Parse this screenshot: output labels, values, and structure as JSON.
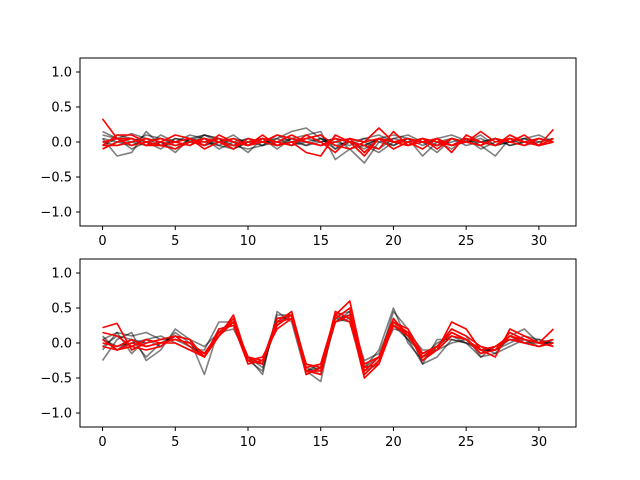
{
  "chart_data": [
    {
      "type": "line",
      "panel": "top",
      "xlim": [
        -1.55,
        32.55
      ],
      "ylim": [
        -1.2,
        1.2
      ],
      "xticks": [
        0,
        5,
        10,
        15,
        20,
        25,
        30
      ],
      "yticks": [
        -1.0,
        -0.5,
        0.0,
        0.5,
        1.0
      ],
      "xtick_labels": [
        "0",
        "5",
        "10",
        "15",
        "20",
        "25",
        "30"
      ],
      "ytick_labels": [
        "−1.0",
        "−0.5",
        "0.0",
        "0.5",
        "1.0"
      ],
      "x": [
        0,
        1,
        2,
        3,
        4,
        5,
        6,
        7,
        8,
        9,
        10,
        11,
        12,
        13,
        14,
        15,
        16,
        17,
        18,
        19,
        20,
        21,
        22,
        23,
        24,
        25,
        26,
        27,
        28,
        29,
        30,
        31
      ],
      "series": [
        {
          "color": "#000000",
          "opacity": 0.5,
          "values": [
            0.15,
            0.05,
            0.12,
            0.05,
            -0.05,
            0.05,
            0.02,
            0.1,
            0.05,
            -0.05,
            -0.1,
            -0.05,
            0.05,
            0.15,
            0.2,
            0.05,
            -0.05,
            0.0,
            -0.1,
            0.05,
            0.1,
            0.05,
            -0.05,
            0.05,
            0.1,
            0.02,
            0.0,
            0.05,
            -0.05,
            0.0,
            0.05,
            0.0
          ]
        },
        {
          "color": "#000000",
          "opacity": 0.5,
          "values": [
            0.05,
            -0.2,
            -0.15,
            0.15,
            -0.05,
            0.0,
            0.1,
            0.05,
            -0.05,
            -0.1,
            0.0,
            0.05,
            -0.1,
            0.05,
            0.1,
            0.15,
            -0.25,
            -0.1,
            -0.05,
            -0.15,
            0.0,
            0.05,
            -0.2,
            0.0,
            -0.1,
            0.05,
            -0.05,
            -0.2,
            0.05,
            0.0,
            -0.05,
            0.0
          ]
        },
        {
          "color": "#000000",
          "opacity": 0.5,
          "values": [
            -0.05,
            0.1,
            0.05,
            0.0,
            -0.1,
            0.05,
            0.0,
            -0.05,
            0.05,
            0.0,
            -0.15,
            0.05,
            0.0,
            -0.05,
            0.05,
            0.0,
            0.05,
            -0.1,
            -0.3,
            0.0,
            0.05,
            0.1,
            0.0,
            -0.05,
            0.05,
            0.0,
            -0.05,
            0.05,
            0.0,
            0.05,
            0.1,
            0.0
          ]
        },
        {
          "color": "#000000",
          "opacity": 0.5,
          "values": [
            -0.1,
            0.0,
            0.05,
            -0.05,
            0.0,
            -0.15,
            0.05,
            0.1,
            0.0,
            -0.05,
            0.05,
            0.0,
            -0.05,
            0.0,
            0.05,
            0.1,
            -0.1,
            0.05,
            0.0,
            -0.1,
            0.05,
            0.0,
            0.05,
            -0.05,
            0.0,
            0.05,
            -0.1,
            0.0,
            0.05,
            -0.05,
            0.0,
            0.05
          ]
        },
        {
          "color": "#000000",
          "opacity": 0.5,
          "values": [
            0.0,
            -0.05,
            0.0,
            0.1,
            0.05,
            -0.05,
            0.0,
            0.05,
            -0.1,
            0.0,
            0.05,
            -0.05,
            0.1,
            0.0,
            -0.05,
            0.05,
            0.0,
            -0.05,
            0.05,
            0.1,
            0.0,
            -0.05,
            0.05,
            0.0,
            -0.05,
            0.05,
            0.0,
            -0.05,
            0.1,
            0.0,
            -0.05,
            0.0
          ]
        },
        {
          "color": "#000000",
          "opacity": 0.5,
          "values": [
            0.1,
            0.05,
            -0.1,
            0.0,
            0.05,
            0.0,
            -0.05,
            0.1,
            0.05,
            -0.1,
            0.0,
            0.05,
            -0.05,
            0.05,
            0.0,
            -0.05,
            0.05,
            0.0,
            -0.05,
            0.05,
            -0.05,
            0.05,
            0.0,
            -0.15,
            0.05,
            0.0,
            0.05,
            -0.05,
            0.0,
            0.05,
            0.0,
            0.05
          ]
        },
        {
          "color": "#000000",
          "opacity": 0.5,
          "values": [
            -0.05,
            0.05,
            0.0,
            -0.05,
            0.1,
            0.0,
            0.05,
            -0.05,
            0.0,
            0.1,
            -0.05,
            0.0,
            0.05,
            -0.05,
            0.0,
            0.05,
            -0.1,
            0.0,
            0.05,
            0.0,
            -0.05,
            0.05,
            0.0,
            0.05,
            -0.05,
            0.0,
            0.1,
            -0.05,
            0.0,
            0.05,
            -0.05,
            0.0
          ]
        },
        {
          "color": "#000000",
          "opacity": 0.5,
          "values": [
            0.05,
            0.0,
            -0.05,
            0.05,
            0.0,
            -0.1,
            0.05,
            0.0,
            -0.05,
            0.05,
            0.0,
            -0.05,
            0.0,
            0.05,
            -0.05,
            0.0,
            0.05,
            0.0,
            -0.05,
            0.05,
            0.0,
            -0.05,
            0.05,
            0.0,
            0.05,
            -0.05,
            0.0,
            0.05,
            -0.05,
            0.0,
            0.05,
            0.0
          ]
        },
        {
          "color": "#ff0000",
          "opacity": 1,
          "values": [
            0.33,
            0.05,
            0.05,
            -0.05,
            -0.05,
            0.0,
            0.05,
            -0.05,
            0.1,
            0.0,
            -0.05,
            0.1,
            -0.05,
            0.0,
            0.05,
            0.1,
            -0.05,
            -0.1,
            0.0,
            0.2,
            0.0,
            -0.05,
            0.05,
            -0.1,
            0.05,
            0.0,
            0.15,
            0.0,
            0.05,
            0.0,
            -0.05,
            0.0
          ]
        },
        {
          "color": "#ff0000",
          "opacity": 1,
          "values": [
            -0.05,
            0.1,
            0.1,
            0.0,
            -0.05,
            -0.1,
            0.0,
            0.05,
            0.0,
            -0.1,
            0.05,
            0.0,
            -0.05,
            0.0,
            -0.15,
            -0.2,
            0.1,
            0.0,
            -0.2,
            0.05,
            0.0,
            0.0,
            -0.1,
            0.05,
            -0.05,
            0.0,
            -0.05,
            0.05,
            0.0,
            -0.05,
            0.05,
            0.0
          ]
        },
        {
          "color": "#ff0000",
          "opacity": 1,
          "values": [
            -0.1,
            0.0,
            0.05,
            -0.05,
            0.0,
            0.1,
            0.05,
            -0.1,
            0.0,
            0.05,
            -0.05,
            0.0,
            0.1,
            0.05,
            0.0,
            -0.05,
            0.05,
            0.0,
            -0.05,
            -0.1,
            0.15,
            -0.05,
            0.0,
            0.05,
            -0.15,
            0.1,
            0.0,
            -0.05,
            0.1,
            0.0,
            -0.05,
            0.05
          ]
        },
        {
          "color": "#ff0000",
          "opacity": 1,
          "values": [
            0.0,
            0.05,
            -0.05,
            0.0,
            0.05,
            0.0,
            -0.05,
            0.05,
            0.0,
            -0.05,
            0.0,
            0.05,
            0.0,
            0.1,
            0.0,
            -0.05,
            0.0,
            0.05,
            -0.15,
            0.05,
            0.0,
            0.05,
            0.0,
            -0.05,
            0.05,
            0.0,
            -0.05,
            0.05,
            0.0,
            0.1,
            -0.05,
            0.18
          ]
        },
        {
          "color": "#ff0000",
          "opacity": 1,
          "values": [
            -0.05,
            -0.05,
            0.0,
            0.05,
            0.0,
            -0.05,
            0.0,
            0.0,
            0.05,
            0.0,
            -0.05,
            0.05,
            0.0,
            -0.05,
            0.1,
            0.0,
            -0.15,
            0.05,
            0.0,
            0.05,
            -0.1,
            0.0,
            0.05,
            0.0,
            -0.05,
            0.05,
            0.0,
            -0.05,
            0.05,
            0.0,
            0.05,
            0.0
          ]
        }
      ]
    },
    {
      "type": "line",
      "panel": "bottom",
      "xlim": [
        -1.55,
        32.55
      ],
      "ylim": [
        -1.2,
        1.2
      ],
      "xticks": [
        0,
        5,
        10,
        15,
        20,
        25,
        30
      ],
      "yticks": [
        -1.0,
        -0.5,
        0.0,
        0.5,
        1.0
      ],
      "xtick_labels": [
        "0",
        "5",
        "10",
        "15",
        "20",
        "25",
        "30"
      ],
      "ytick_labels": [
        "−1.0",
        "−0.5",
        "0.0",
        "0.5",
        "1.0"
      ],
      "x": [
        0,
        1,
        2,
        3,
        4,
        5,
        6,
        7,
        8,
        9,
        10,
        11,
        12,
        13,
        14,
        15,
        16,
        17,
        18,
        19,
        20,
        21,
        22,
        23,
        24,
        25,
        26,
        27,
        28,
        29,
        30,
        31
      ],
      "series": [
        {
          "color": "#000000",
          "opacity": 0.5,
          "values": [
            -0.25,
            0.05,
            0.15,
            -0.25,
            -0.1,
            0.2,
            0.05,
            -0.45,
            0.2,
            0.25,
            -0.25,
            -0.4,
            0.4,
            0.4,
            -0.4,
            -0.55,
            0.4,
            0.45,
            -0.35,
            -0.1,
            0.5,
            0.0,
            -0.25,
            -0.05,
            0.2,
            0.1,
            -0.2,
            -0.15,
            0.1,
            0.2,
            0.0,
            0.0
          ]
        },
        {
          "color": "#000000",
          "opacity": 0.5,
          "values": [
            0.05,
            0.15,
            -0.15,
            0.05,
            0.1,
            0.0,
            -0.1,
            -0.1,
            0.3,
            0.3,
            -0.2,
            -0.45,
            0.45,
            0.3,
            -0.45,
            -0.35,
            0.35,
            0.3,
            -0.45,
            -0.25,
            0.45,
            0.2,
            -0.3,
            0.05,
            0.05,
            0.0,
            -0.2,
            -0.05,
            0.05,
            0.0,
            0.05,
            -0.05
          ]
        },
        {
          "color": "#000000",
          "opacity": 0.5,
          "values": [
            -0.1,
            0.15,
            0.1,
            0.15,
            0.05,
            0.1,
            0.05,
            -0.05,
            0.15,
            0.35,
            -0.3,
            -0.25,
            0.35,
            0.4,
            -0.4,
            -0.3,
            0.35,
            0.4,
            -0.4,
            -0.3,
            0.3,
            0.05,
            -0.3,
            -0.2,
            0.05,
            0.0,
            -0.05,
            -0.15,
            -0.05,
            0.05,
            0.0,
            0.05
          ]
        },
        {
          "color": "#000000",
          "opacity": 0.5,
          "values": [
            0.1,
            -0.1,
            0.05,
            -0.2,
            0.0,
            0.1,
            -0.05,
            -0.2,
            0.2,
            0.25,
            -0.2,
            -0.3,
            0.25,
            0.45,
            -0.3,
            -0.4,
            0.3,
            0.35,
            -0.3,
            -0.2,
            0.2,
            0.15,
            -0.1,
            -0.1,
            0.0,
            0.05,
            -0.1,
            -0.1,
            0.0,
            0.1,
            0.05,
            0.0
          ]
        },
        {
          "color": "#000000",
          "opacity": 0.5,
          "values": [
            0.05,
            -0.05,
            0.0,
            0.05,
            -0.05,
            0.15,
            0.0,
            -0.2,
            0.15,
            0.2,
            -0.2,
            -0.35,
            0.3,
            0.35,
            -0.35,
            -0.45,
            0.3,
            0.4,
            -0.25,
            -0.15,
            0.35,
            0.1,
            -0.2,
            0.0,
            0.1,
            0.05,
            -0.15,
            -0.05,
            0.05,
            0.05,
            -0.05,
            0.05
          ]
        },
        {
          "color": "#000000",
          "opacity": 0.5,
          "values": [
            -0.05,
            0.1,
            0.05,
            0.0,
            0.05,
            0.05,
            -0.05,
            -0.15,
            0.1,
            0.3,
            -0.25,
            -0.3,
            0.35,
            0.35,
            -0.4,
            -0.35,
            0.3,
            0.45,
            -0.35,
            -0.2,
            0.25,
            0.05,
            -0.15,
            -0.05,
            0.1,
            0.0,
            -0.1,
            -0.1,
            0.05,
            0.0,
            0.0,
            0.0
          ]
        },
        {
          "color": "#ff0000",
          "opacity": 1,
          "values": [
            0.22,
            0.28,
            -0.1,
            0.0,
            0.05,
            0.1,
            0.05,
            -0.2,
            0.1,
            0.4,
            -0.25,
            -0.3,
            0.3,
            0.45,
            -0.35,
            -0.3,
            0.4,
            0.3,
            -0.4,
            -0.2,
            0.35,
            0.1,
            -0.2,
            -0.1,
            0.3,
            0.2,
            -0.1,
            -0.2,
            0.2,
            0.1,
            0.0,
            0.2
          ]
        },
        {
          "color": "#ff0000",
          "opacity": 1,
          "values": [
            0.0,
            -0.05,
            0.05,
            -0.05,
            0.0,
            0.05,
            0.0,
            -0.15,
            0.15,
            0.3,
            -0.2,
            -0.25,
            0.35,
            0.4,
            -0.4,
            -0.4,
            0.45,
            0.35,
            -0.5,
            -0.3,
            0.3,
            0.2,
            -0.15,
            -0.05,
            0.15,
            0.05,
            -0.1,
            -0.05,
            0.1,
            0.0,
            -0.05,
            0.0
          ]
        },
        {
          "color": "#ff0000",
          "opacity": 1,
          "values": [
            0.05,
            -0.1,
            -0.05,
            -0.1,
            -0.05,
            0.1,
            -0.05,
            -0.2,
            0.2,
            0.25,
            -0.3,
            -0.25,
            0.25,
            0.4,
            -0.45,
            -0.35,
            0.4,
            0.6,
            -0.35,
            -0.3,
            0.25,
            0.15,
            -0.25,
            -0.1,
            0.1,
            0.05,
            -0.15,
            -0.1,
            0.1,
            0.05,
            0.0,
            -0.05
          ]
        },
        {
          "color": "#ff0000",
          "opacity": 1,
          "values": [
            0.15,
            0.1,
            -0.05,
            0.05,
            0.0,
            0.0,
            -0.1,
            -0.2,
            0.1,
            0.35,
            -0.25,
            -0.2,
            0.2,
            0.35,
            -0.3,
            -0.35,
            0.3,
            0.4,
            -0.3,
            -0.2,
            0.25,
            0.1,
            -0.15,
            -0.05,
            0.2,
            0.1,
            -0.05,
            -0.1,
            0.15,
            0.05,
            0.0,
            0.05
          ]
        },
        {
          "color": "#ff0000",
          "opacity": 1,
          "values": [
            -0.05,
            -0.1,
            0.0,
            -0.05,
            0.0,
            0.05,
            0.0,
            -0.15,
            0.1,
            0.3,
            -0.2,
            -0.3,
            0.3,
            0.35,
            -0.4,
            -0.45,
            0.35,
            0.5,
            -0.45,
            -0.25,
            0.3,
            0.15,
            -0.2,
            -0.05,
            0.15,
            0.05,
            -0.1,
            -0.05,
            0.05,
            0.0,
            -0.05,
            0.0
          ]
        }
      ]
    }
  ]
}
